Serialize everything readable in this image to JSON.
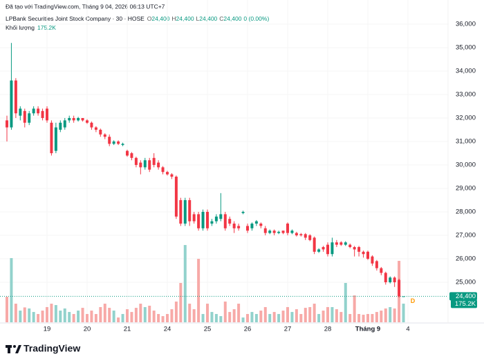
{
  "header": {
    "created": "Đã tạo với TradingView.com, Tháng 9 04, 2026 06:13 UTC+7",
    "symbol": "LPBank Securities Joint Stock Company · 30 · HOSE",
    "ohlc": [
      {
        "key": "O",
        "value": "24,400"
      },
      {
        "key": "H",
        "value": "24,400"
      },
      {
        "key": "L",
        "value": "24,400"
      },
      {
        "key": "C",
        "value": "24,400"
      }
    ],
    "change": "0 (0.00%)",
    "volume_name": "Khối lượng",
    "volume": "175.2K"
  },
  "footer": {
    "brand": "TradingView"
  },
  "chart_data": {
    "type": "candlestick",
    "x": [
      0,
      1,
      2,
      3,
      4,
      5,
      6,
      7,
      8,
      9,
      10,
      11,
      12,
      13,
      14,
      15,
      16,
      17,
      18,
      19,
      20,
      21,
      22,
      23,
      24,
      25,
      26,
      27,
      28,
      29,
      30,
      31,
      32,
      33,
      34,
      35,
      36,
      37,
      38,
      39,
      40,
      41,
      42,
      43,
      44,
      45,
      46,
      47,
      48,
      49,
      50,
      51,
      52,
      53,
      54,
      55,
      56,
      57,
      58,
      59,
      60,
      61,
      62,
      63,
      64,
      65,
      66,
      67,
      68,
      69,
      70,
      71,
      72,
      73,
      74,
      75,
      76,
      77,
      78,
      79,
      80,
      81,
      82,
      83,
      84,
      85,
      86,
      87,
      88,
      89
    ],
    "open": [
      31900,
      31600,
      33600,
      32100,
      32300,
      31800,
      32200,
      32400,
      32300,
      32400,
      31800,
      30600,
      31500,
      31600,
      31900,
      32000,
      31900,
      32000,
      31900,
      31800,
      31600,
      31500,
      31300,
      31200,
      30900,
      31000,
      30850,
      30600,
      30500,
      30300,
      30100,
      29900,
      30200,
      30300,
      30100,
      29900,
      29700,
      29600,
      29500,
      28500,
      27500,
      28500,
      27900,
      27900,
      27300,
      28000,
      27500,
      27600,
      27700,
      27900,
      27700,
      27500,
      27400,
      27950,
      27400,
      27300,
      27500,
      27500,
      27300,
      27100,
      27200,
      27100,
      27200,
      27500,
      27100,
      27100,
      27050,
      27050,
      27000,
      26900,
      26300,
      26500,
      26600,
      26200,
      26700,
      26700,
      26600,
      26600,
      26500,
      26500,
      26300,
      26300,
      26100,
      25900,
      25600,
      25400,
      25000,
      25200,
      25100,
      24400
    ],
    "high": [
      32100,
      35200,
      33700,
      32500,
      32400,
      32300,
      32500,
      32500,
      32400,
      32500,
      31900,
      31800,
      31900,
      32000,
      32100,
      32100,
      32050,
      32000,
      31950,
      31850,
      31650,
      31550,
      31350,
      31300,
      31050,
      31050,
      30950,
      30650,
      30550,
      30350,
      30200,
      30300,
      30300,
      30500,
      30200,
      29950,
      29750,
      29650,
      29550,
      28600,
      28600,
      28600,
      28000,
      28000,
      28100,
      28100,
      27700,
      27900,
      28800,
      28000,
      27800,
      27600,
      27500,
      28050,
      27500,
      27550,
      27650,
      27550,
      27400,
      27250,
      27250,
      27200,
      27200,
      27550,
      27250,
      27150,
      27100,
      27100,
      27050,
      26950,
      26450,
      26550,
      26700,
      26900,
      26800,
      26750,
      26750,
      26650,
      26550,
      26550,
      26350,
      26350,
      26150,
      25950,
      25650,
      25450,
      25250,
      25250,
      25150,
      24400
    ],
    "low": [
      31000,
      31500,
      32000,
      31900,
      31600,
      31700,
      32100,
      32100,
      31900,
      31800,
      30400,
      30500,
      31400,
      31500,
      31800,
      31800,
      31850,
      31850,
      31750,
      31500,
      31400,
      31200,
      31100,
      30800,
      30850,
      30850,
      30800,
      30350,
      30200,
      29900,
      29600,
      29800,
      29700,
      29900,
      29800,
      29600,
      29550,
      29400,
      27700,
      27400,
      27400,
      27400,
      27500,
      27200,
      27200,
      27200,
      27400,
      27500,
      27600,
      27200,
      27400,
      27100,
      27200,
      27900,
      27100,
      27200,
      27400,
      27300,
      27000,
      27050,
      27000,
      27050,
      27050,
      27000,
      27050,
      26950,
      26950,
      26800,
      26750,
      26200,
      26250,
      26300,
      26100,
      26100,
      26500,
      26550,
      26550,
      26450,
      26100,
      26100,
      26050,
      25950,
      25700,
      25500,
      25300,
      24900,
      24950,
      24800,
      24350,
      24400
    ],
    "close": [
      31600,
      33600,
      32200,
      32400,
      31800,
      32200,
      32400,
      32200,
      32000,
      31900,
      30500,
      31600,
      31800,
      31900,
      32000,
      31900,
      32000,
      31900,
      31800,
      31600,
      31500,
      31300,
      31200,
      30900,
      31000,
      30900,
      30900,
      30400,
      30300,
      30000,
      29900,
      30200,
      29800,
      30000,
      29900,
      29700,
      29600,
      29500,
      27800,
      27500,
      28500,
      27600,
      27600,
      27300,
      28000,
      27300,
      27600,
      27800,
      27900,
      27300,
      27500,
      27300,
      27300,
      28000,
      27200,
      27500,
      27600,
      27400,
      27100,
      27200,
      27100,
      27150,
      27100,
      27100,
      27200,
      27000,
      27000,
      26900,
      26800,
      26300,
      26400,
      26400,
      26200,
      26700,
      26600,
      26600,
      26700,
      26500,
      26400,
      26300,
      26200,
      26000,
      25800,
      25600,
      25400,
      25000,
      25200,
      25000,
      24400,
      24400
    ],
    "volume": [
      240000,
      604000,
      175000,
      110000,
      140000,
      130000,
      97000,
      78000,
      110000,
      143000,
      175000,
      162000,
      110000,
      130000,
      97000,
      78000,
      110000,
      136000,
      78000,
      110000,
      78000,
      143000,
      175000,
      136000,
      110000,
      45000,
      78000,
      123000,
      97000,
      136000,
      175000,
      143000,
      156000,
      110000,
      78000,
      58000,
      78000,
      123000,
      195000,
      370000,
      727000,
      175000,
      123000,
      597000,
      78000,
      175000,
      97000,
      78000,
      58000,
      195000,
      97000,
      123000,
      175000,
      45000,
      78000,
      97000,
      78000,
      110000,
      143000,
      78000,
      97000,
      78000,
      110000,
      143000,
      97000,
      123000,
      78000,
      136000,
      143000,
      175000,
      78000,
      110000,
      143000,
      143000,
      123000,
      97000,
      370000,
      78000,
      253000,
      78000,
      71000,
      78000,
      78000,
      97000,
      110000,
      130000,
      143000,
      130000,
      578000,
      175200
    ],
    "xlim": [
      -1.55,
      99
    ],
    "xticks": [
      {
        "value": 9,
        "label": "19"
      },
      {
        "value": 18,
        "label": "20"
      },
      {
        "value": 27,
        "label": "21"
      },
      {
        "value": 36,
        "label": "24"
      },
      {
        "value": 45,
        "label": "25"
      },
      {
        "value": 54,
        "label": "26"
      },
      {
        "value": 63,
        "label": "27"
      },
      {
        "value": 72,
        "label": "28"
      },
      {
        "value": 81,
        "label": "Tháng 9"
      },
      {
        "value": 90,
        "label": "4"
      }
    ],
    "ylim": [
      23265,
      37030
    ],
    "yticks": [
      {
        "value": 25000,
        "label": "25,000"
      },
      {
        "value": 26000,
        "label": "26,000"
      },
      {
        "value": 27000,
        "label": "27,000"
      },
      {
        "value": 28000,
        "label": "28,000"
      },
      {
        "value": 29000,
        "label": "29,000"
      },
      {
        "value": 30000,
        "label": "30,000"
      },
      {
        "value": 31000,
        "label": "31,000"
      },
      {
        "value": 32000,
        "label": "32,000"
      },
      {
        "value": 33000,
        "label": "33,000"
      },
      {
        "value": 34000,
        "label": "34,000"
      },
      {
        "value": 35000,
        "label": "35,000"
      },
      {
        "value": 36000,
        "label": "36,000"
      }
    ],
    "vlim": [
      0,
      1000000
    ],
    "last_price": {
      "value": 24400,
      "label": "24,400"
    },
    "last_volume": {
      "value": 175200,
      "label": "175.2K"
    },
    "session_marker": "D",
    "up_color": "#089981",
    "down_color": "#f23645",
    "up_volume_color": "#92d2cc",
    "down_volume_color": "#f7a9a7",
    "grid": true
  }
}
